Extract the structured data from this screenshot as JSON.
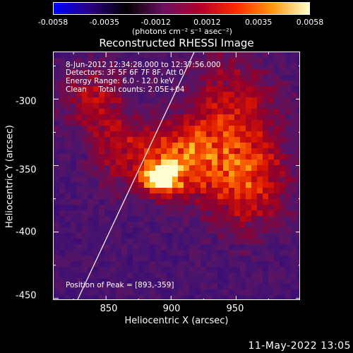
{
  "colorbar": {
    "ticks": [
      "-0.0058",
      "-0.0035",
      "-0.0012",
      "0.0012",
      "0.0035",
      "0.0058"
    ],
    "units": "(photons cm⁻² s⁻¹ asec⁻²)",
    "colors": [
      "#0000ff",
      "#2a007f",
      "#000000",
      "#6b1060",
      "#b0002a",
      "#ff2a00",
      "#ff9a10",
      "#ffffcc"
    ]
  },
  "header": {
    "title": "Reconstructed RHESSI Image"
  },
  "info": {
    "time_range": "8-Jun-2012 12:34:28.000 to 12:37:56.000",
    "detectors": "Detectors: 3F 5F 6F 7F 8F, Att 0",
    "energy": "Energy Range: 6.0 - 12.0 keV",
    "clean": "Clean     Total counts: 2.05E+04",
    "peak": "Position of Peak = [893,-359]"
  },
  "axes": {
    "xlabel": "Heliocentric X (arcsec)",
    "ylabel": "Heliocentric Y (arcsec)",
    "xticks": [
      "850",
      "900",
      "950"
    ],
    "yticks": [
      "-300",
      "-350",
      "-400",
      "-450"
    ]
  },
  "footer": {
    "date": "11-May-2022 13:05"
  },
  "chart_data": {
    "type": "heatmap",
    "title": "Reconstructed RHESSI Image",
    "xlabel": "Heliocentric X (arcsec)",
    "ylabel": "Heliocentric Y (arcsec)",
    "xlim": [
      810,
      1000
    ],
    "ylim": [
      -452,
      -265
    ],
    "colorbar_range": [
      -0.0058,
      0.0058
    ],
    "peak": {
      "x": 893,
      "y": -359
    },
    "limb_line": {
      "x": [
        828,
        918
      ],
      "y": [
        -452,
        -265
      ]
    },
    "blobs": [
      {
        "x": 893,
        "y": -359,
        "amp": 1.0,
        "sx": 10,
        "sy": 8
      },
      {
        "x": 905,
        "y": -345,
        "amp": 0.55,
        "sx": 22,
        "sy": 18
      },
      {
        "x": 945,
        "y": -320,
        "amp": 0.45,
        "sx": 25,
        "sy": 35
      },
      {
        "x": 960,
        "y": -365,
        "amp": 0.4,
        "sx": 22,
        "sy": 25
      },
      {
        "x": 840,
        "y": -300,
        "amp": 0.35,
        "sx": 18,
        "sy": 18
      },
      {
        "x": 860,
        "y": -340,
        "amp": 0.3,
        "sx": 15,
        "sy": 20
      }
    ]
  }
}
